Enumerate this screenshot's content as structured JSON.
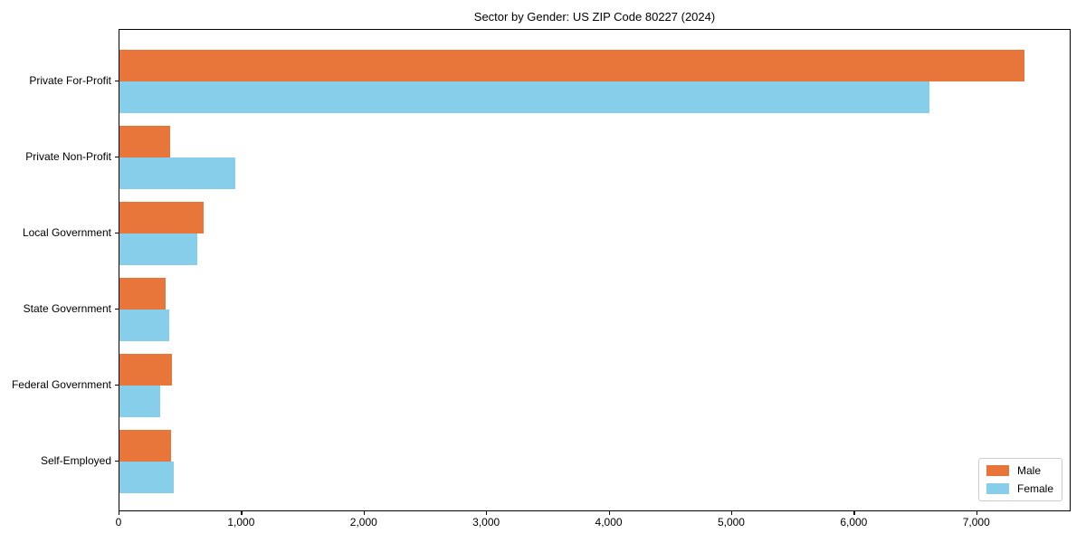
{
  "chart_data": {
    "type": "bar",
    "orientation": "horizontal",
    "title": "Sector by Gender: US ZIP Code 80227 (2024)",
    "categories": [
      "Private For-Profit",
      "Private Non-Profit",
      "Local Government",
      "State Government",
      "Federal Government",
      "Self-Employed"
    ],
    "series": [
      {
        "name": "Male",
        "color": "#E8763B",
        "values": [
          7400,
          415,
          690,
          380,
          430,
          420
        ]
      },
      {
        "name": "Female",
        "color": "#87CEEB",
        "values": [
          6620,
          950,
          640,
          405,
          335,
          445
        ]
      }
    ],
    "xlabel": "",
    "ylabel": "",
    "xlim": [
      0,
      7770
    ],
    "x_ticks": [
      0,
      1000,
      2000,
      3000,
      4000,
      5000,
      6000,
      7000
    ],
    "x_tick_labels": [
      "0",
      "1,000",
      "2,000",
      "3,000",
      "4,000",
      "5,000",
      "6,000",
      "7,000"
    ],
    "grid": false,
    "legend": {
      "position": "lower right",
      "entries": [
        "Male",
        "Female"
      ]
    }
  },
  "colors": {
    "male": "#E8763B",
    "female": "#87CEEB",
    "spine": "#000000",
    "legend_border": "#CCCCCC",
    "background": "#FFFFFF",
    "text": "#000000"
  }
}
